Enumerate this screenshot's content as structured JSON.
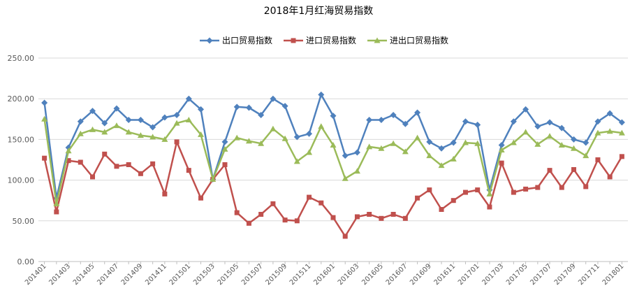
{
  "chart_data": {
    "type": "line",
    "title": "2018年1月红海贸易指数",
    "xlabel": "",
    "ylabel": "",
    "ylim": [
      0,
      250
    ],
    "yticks": [
      "0.00",
      "50.00",
      "100.00",
      "150.00",
      "200.00",
      "250.00"
    ],
    "grid": true,
    "legend_position": "top",
    "x": [
      "201401",
      "201402",
      "201403",
      "201404",
      "201405",
      "201406",
      "201407",
      "201408",
      "201409",
      "201410",
      "201411",
      "201412",
      "201501",
      "201502",
      "201503",
      "201504",
      "201505",
      "201506",
      "201507",
      "201508",
      "201509",
      "201510",
      "201511",
      "201512",
      "201601",
      "201602",
      "201603",
      "201604",
      "201605",
      "201606",
      "201607",
      "201608",
      "201609",
      "201610",
      "201611",
      "201612",
      "201701",
      "201702",
      "201703",
      "201704",
      "201705",
      "201706",
      "201707",
      "201708",
      "201709",
      "201710",
      "201711",
      "201712",
      "201801"
    ],
    "x_tick_labels": [
      "201401",
      "201403",
      "201405",
      "201407",
      "201409",
      "201411",
      "201501",
      "201503",
      "201505",
      "201507",
      "201509",
      "201511",
      "201601",
      "201603",
      "201605",
      "201607",
      "201609",
      "201611",
      "201701",
      "201703",
      "201705",
      "201707",
      "201709",
      "201711",
      "201801"
    ],
    "series": [
      {
        "name": "出口贸易指数",
        "color": "#4F81BD",
        "marker": "diamond",
        "values": [
          195,
          78,
          140,
          172,
          185,
          170,
          188,
          174,
          174,
          165,
          177,
          180,
          200,
          187,
          101,
          147,
          190,
          189,
          180,
          200,
          191,
          153,
          157,
          205,
          179,
          130,
          134,
          174,
          174,
          180,
          169,
          183,
          147,
          139,
          146,
          172,
          168,
          88,
          143,
          172,
          187,
          166,
          171,
          164,
          150,
          146,
          172,
          182,
          171
        ]
      },
      {
        "name": "进口贸易指数",
        "color": "#C0504D",
        "marker": "square",
        "values": [
          127,
          61,
          124,
          122,
          104,
          132,
          117,
          119,
          108,
          120,
          83,
          147,
          112,
          78,
          101,
          119,
          60,
          47,
          58,
          71,
          51,
          50,
          79,
          72,
          54,
          31,
          55,
          58,
          53,
          58,
          53,
          78,
          88,
          64,
          75,
          85,
          88,
          67,
          121,
          85,
          89,
          91,
          112,
          91,
          113,
          92,
          125,
          104,
          129
        ]
      },
      {
        "name": "进出口贸易指数",
        "color": "#9BBB59",
        "marker": "triangle",
        "values": [
          175,
          71,
          136,
          157,
          162,
          159,
          167,
          159,
          155,
          153,
          150,
          170,
          174,
          156,
          101,
          138,
          152,
          148,
          145,
          163,
          151,
          123,
          134,
          166,
          143,
          102,
          111,
          141,
          139,
          145,
          135,
          152,
          130,
          118,
          126,
          146,
          145,
          83,
          137,
          146,
          159,
          144,
          154,
          143,
          139,
          130,
          158,
          160,
          158
        ]
      }
    ]
  }
}
